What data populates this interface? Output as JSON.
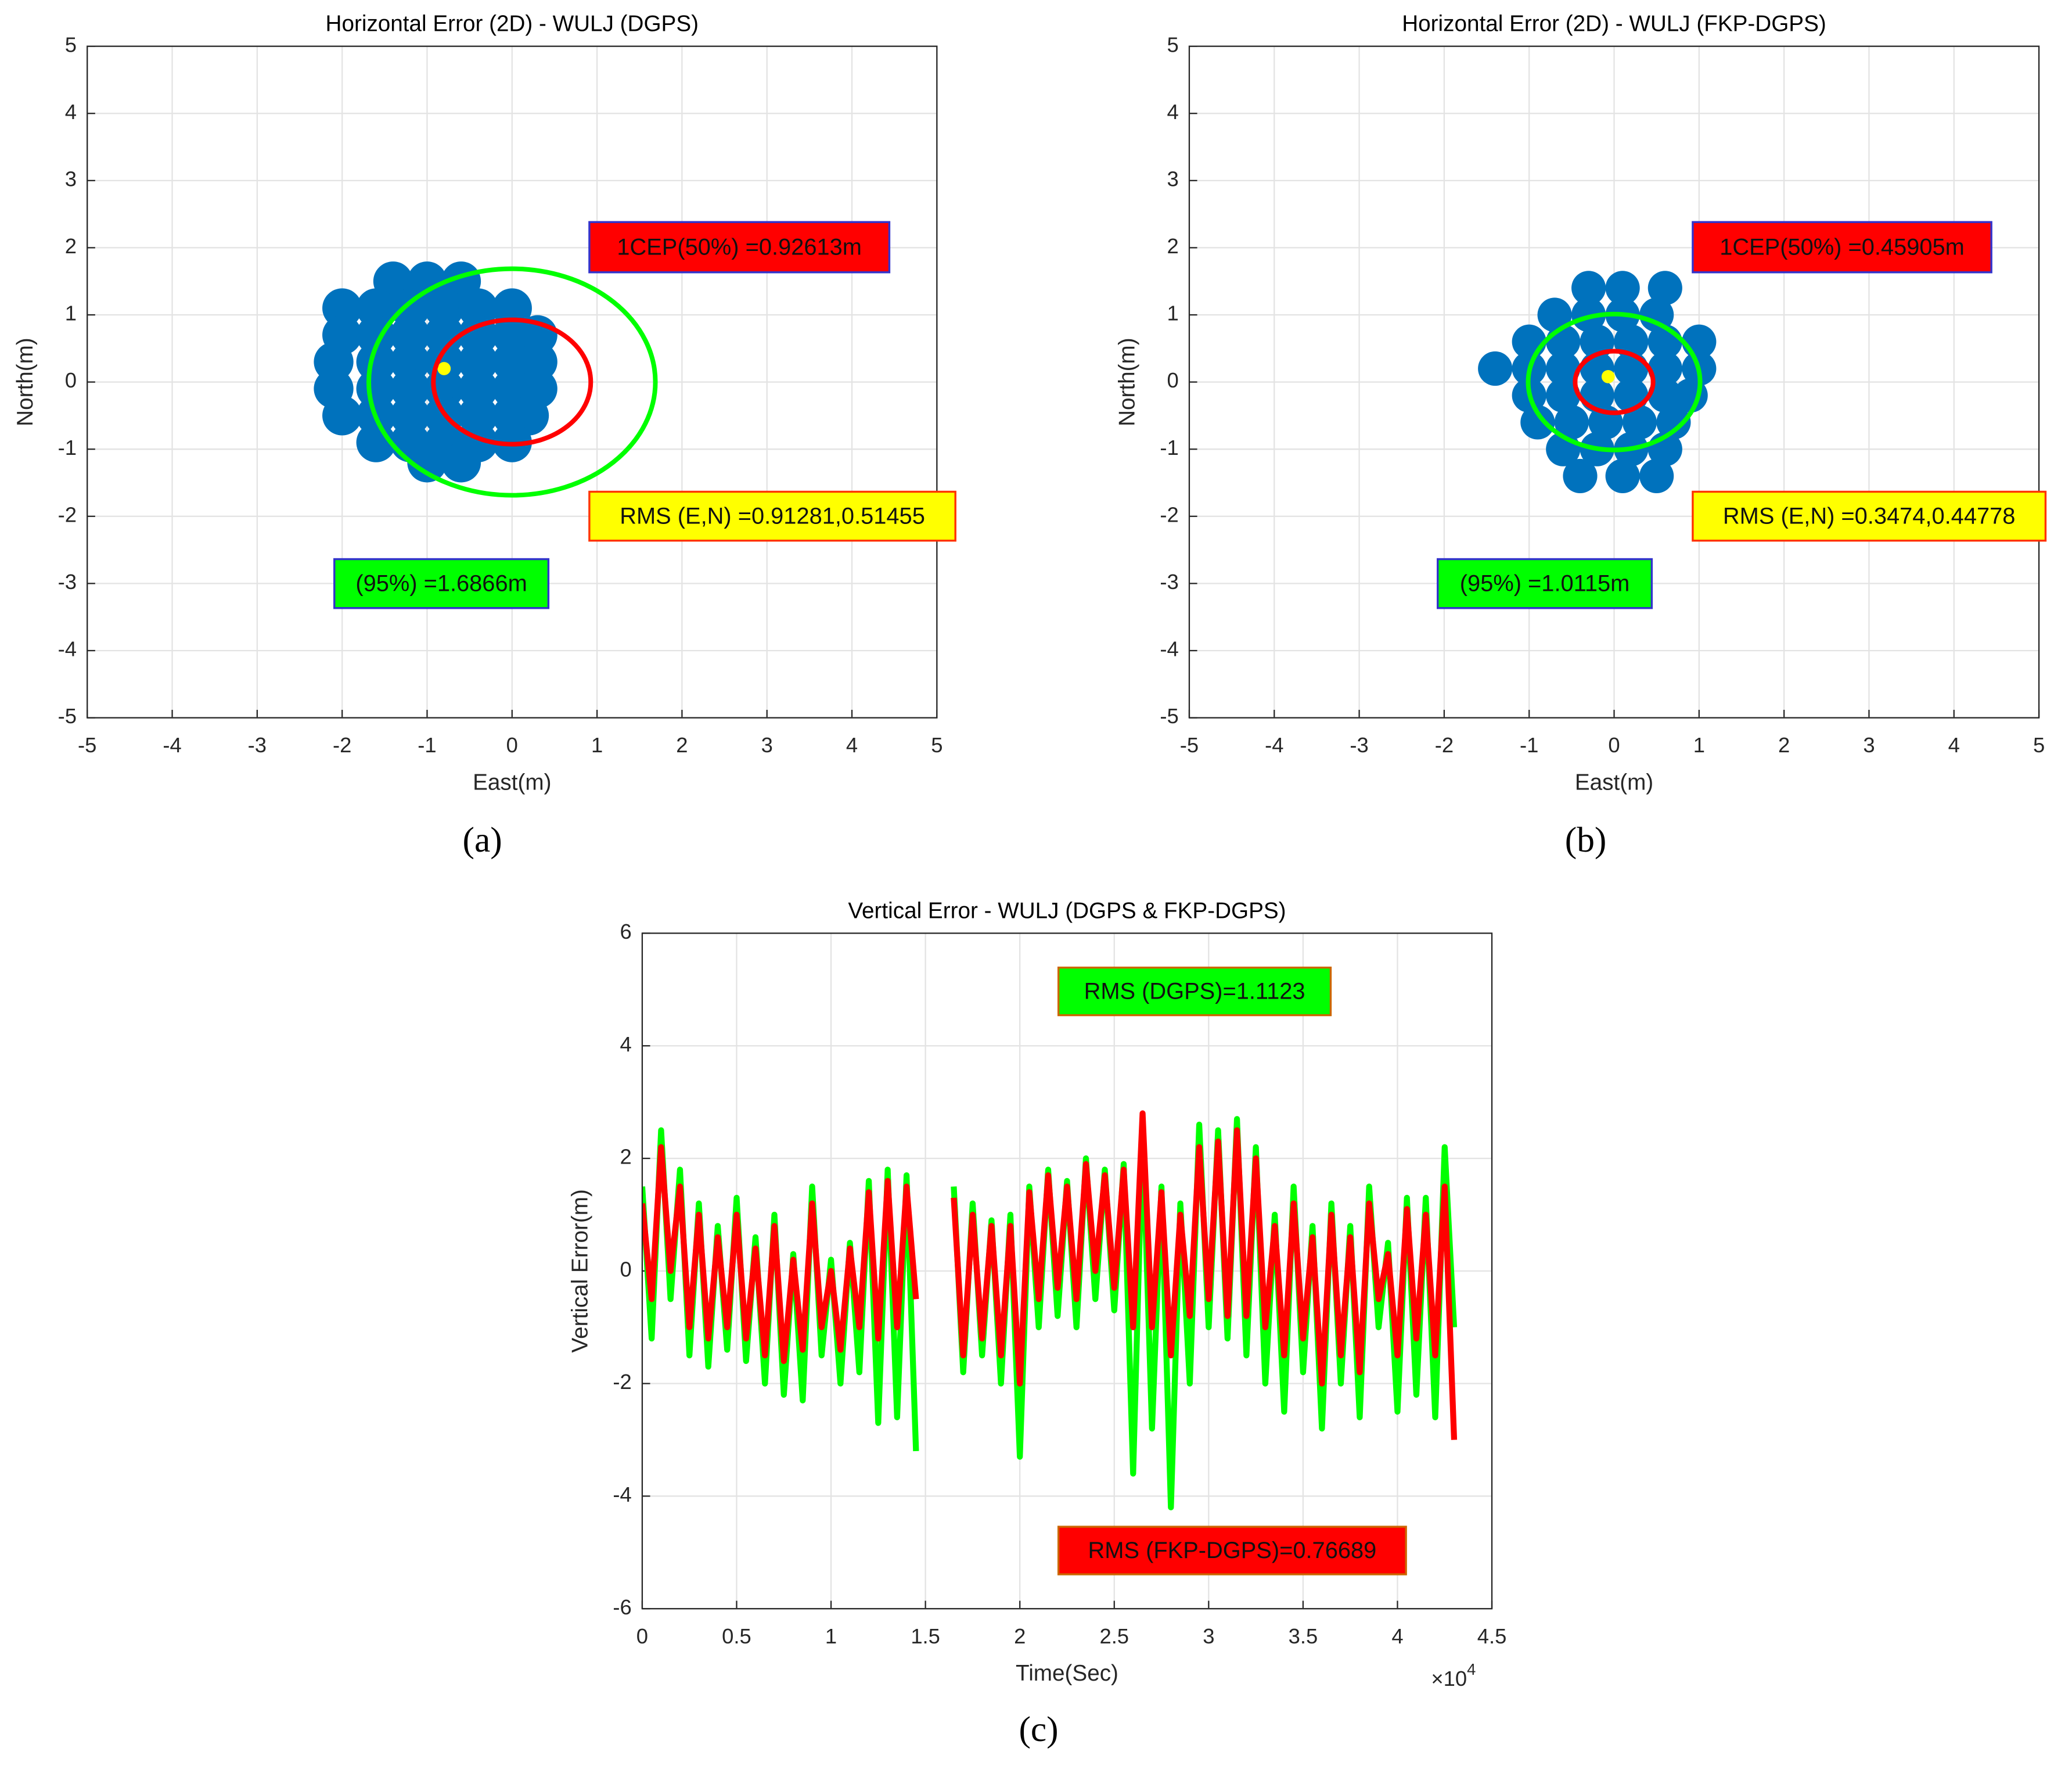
{
  "chart_data": [
    {
      "type": "scatter",
      "title": "Horizontal Error (2D) - WULJ (DGPS)",
      "x_label": "East(m)",
      "y_label": "North(m)",
      "caption": "(a)",
      "xlim": [
        -5,
        5
      ],
      "ylim": [
        -5,
        5
      ],
      "xticks": [
        -5,
        -4,
        -3,
        -2,
        -1,
        0,
        1,
        2,
        3,
        4,
        5
      ],
      "yticks": [
        -5,
        -4,
        -3,
        -2,
        -1,
        0,
        1,
        2,
        3,
        4,
        5
      ],
      "grid": true,
      "series": [
        {
          "color": "#0072bd",
          "x": [
            -1.4,
            -1.0,
            -0.6,
            -2.0,
            -1.6,
            -1.2,
            -0.8,
            -0.4,
            0.0,
            -2.0,
            -1.6,
            -1.2,
            -0.8,
            -0.4,
            0.0,
            0.3,
            -2.1,
            -1.6,
            -1.2,
            -0.8,
            -0.4,
            0.0,
            0.3,
            -2.1,
            -1.6,
            -1.2,
            -0.8,
            -0.4,
            0.0,
            0.3,
            -2.0,
            -1.6,
            -1.2,
            -0.8,
            -0.4,
            0.0,
            0.2,
            -1.6,
            -1.2,
            -0.8,
            -0.4,
            0.0,
            -1.0,
            -0.6
          ],
          "values": [
            1.5,
            1.5,
            1.5,
            1.1,
            1.1,
            1.1,
            1.1,
            1.1,
            1.1,
            0.7,
            0.7,
            0.7,
            0.7,
            0.7,
            0.7,
            0.7,
            0.3,
            0.3,
            0.3,
            0.3,
            0.3,
            0.3,
            0.3,
            -0.1,
            -0.1,
            -0.1,
            -0.1,
            -0.1,
            -0.1,
            -0.1,
            -0.5,
            -0.5,
            -0.5,
            -0.5,
            -0.5,
            -0.5,
            -0.5,
            -0.9,
            -0.9,
            -0.9,
            -0.9,
            -0.9,
            -1.2,
            -1.2
          ]
        },
        {
          "color": "#ffff00",
          "x": [
            -0.8
          ],
          "values": [
            0.2
          ]
        }
      ],
      "center": [
        0,
        0
      ],
      "circles": [
        {
          "radius": 0.92613,
          "color": "#ff0000"
        },
        {
          "radius": 1.6866,
          "color": "#00ff00"
        }
      ],
      "annotations": [
        {
          "text": "1CEP(50%) =0.92613m",
          "fill": "#ff0000",
          "border": "#3333cc"
        },
        {
          "text": "RMS (E,N) =0.91281,0.51455",
          "fill": "#ffff00",
          "border": "#ff3300"
        },
        {
          "text": "(95%) =1.6866m",
          "fill": "#00ff00",
          "border": "#3333cc"
        }
      ]
    },
    {
      "type": "scatter",
      "title": "Horizontal Error (2D) - WULJ (FKP-DGPS)",
      "x_label": "East(m)",
      "y_label": "North(m)",
      "caption": "(b)",
      "xlim": [
        -5,
        5
      ],
      "ylim": [
        -5,
        5
      ],
      "xticks": [
        -5,
        -4,
        -3,
        -2,
        -1,
        0,
        1,
        2,
        3,
        4,
        5
      ],
      "yticks": [
        -5,
        -4,
        -3,
        -2,
        -1,
        0,
        1,
        2,
        3,
        4,
        5
      ],
      "grid": true,
      "series": [
        {
          "color": "#0072bd",
          "x": [
            -0.3,
            0.1,
            0.6,
            -0.7,
            -0.3,
            0.1,
            0.5,
            -1.0,
            -0.6,
            -0.2,
            0.2,
            0.6,
            1.0,
            -1.4,
            -1.0,
            -0.6,
            -0.2,
            0.2,
            0.6,
            1.0,
            -1.0,
            -0.6,
            -0.2,
            0.2,
            0.6,
            0.9,
            -0.9,
            -0.5,
            -0.1,
            0.3,
            0.7,
            -0.6,
            -0.2,
            0.2,
            0.6,
            -0.4,
            0.1,
            0.5
          ],
          "values": [
            1.4,
            1.4,
            1.4,
            1.0,
            1.0,
            1.0,
            1.0,
            0.6,
            0.6,
            0.6,
            0.6,
            0.6,
            0.6,
            0.2,
            0.2,
            0.2,
            0.2,
            0.2,
            0.2,
            0.2,
            -0.2,
            -0.2,
            -0.2,
            -0.2,
            -0.2,
            -0.2,
            -0.6,
            -0.6,
            -0.6,
            -0.6,
            -0.6,
            -1.0,
            -1.0,
            -1.0,
            -1.0,
            -1.4,
            -1.4,
            -1.4
          ]
        },
        {
          "color": "#ffff00",
          "x": [
            -0.07
          ],
          "values": [
            0.08
          ]
        }
      ],
      "center": [
        0,
        0
      ],
      "circles": [
        {
          "radius": 0.45905,
          "color": "#ff0000"
        },
        {
          "radius": 1.0115,
          "color": "#00ff00"
        }
      ],
      "annotations": [
        {
          "text": "1CEP(50%) =0.45905m",
          "fill": "#ff0000",
          "border": "#3333cc"
        },
        {
          "text": "RMS (E,N) =0.3474,0.44778",
          "fill": "#ffff00",
          "border": "#ff3300"
        },
        {
          "text": "(95%) =1.0115m",
          "fill": "#00ff00",
          "border": "#3333cc"
        }
      ]
    },
    {
      "type": "line",
      "title": "Vertical Error - WULJ (DGPS & FKP-DGPS)",
      "x_label": "Time(Sec)",
      "y_label": "Vertical Error(m)",
      "caption": "(c)",
      "x_multiplier": {
        "base": "×10",
        "power": "4"
      },
      "xlim": [
        0,
        45000
      ],
      "ylim": [
        -6,
        6
      ],
      "xticks": [
        0,
        {
          "value": 5000,
          "label": "0.5"
        },
        {
          "value": 10000,
          "label": "1"
        },
        {
          "value": 15000,
          "label": "1.5"
        },
        {
          "value": 20000,
          "label": "2"
        },
        {
          "value": 25000,
          "label": "2.5"
        },
        {
          "value": 30000,
          "label": "3"
        },
        {
          "value": 35000,
          "label": "3.5"
        },
        {
          "value": 40000,
          "label": "4"
        },
        {
          "value": 45000,
          "label": "4.5"
        }
      ],
      "yticks": [
        -6,
        -4,
        -2,
        0,
        2,
        4,
        6
      ],
      "grid": true,
      "x": [
        0,
        500,
        1000,
        1500,
        2000,
        2500,
        3000,
        3500,
        4000,
        4500,
        5000,
        5500,
        6000,
        6500,
        7000,
        7500,
        8000,
        8500,
        9000,
        9500,
        10000,
        10500,
        11000,
        11500,
        12000,
        12500,
        13000,
        13500,
        14000,
        14500,
        15500,
        16500,
        17000,
        17500,
        18000,
        18500,
        19000,
        19500,
        20000,
        20500,
        21000,
        21500,
        22000,
        22500,
        23000,
        23500,
        24000,
        24500,
        25000,
        25500,
        26000,
        26500,
        27000,
        27500,
        28000,
        28500,
        29000,
        29500,
        30000,
        30500,
        31000,
        31500,
        32000,
        32500,
        33000,
        33500,
        34000,
        34500,
        35000,
        35500,
        36000,
        36500,
        37000,
        37500,
        38000,
        38500,
        39000,
        39500,
        40000,
        40500,
        41000,
        41500,
        42000,
        42500,
        43000
      ],
      "series": [
        {
          "color": "#00ff00",
          "values": [
            1.5,
            -1.2,
            2.5,
            -0.5,
            1.8,
            -1.5,
            1.2,
            -1.7,
            0.8,
            -1.4,
            1.3,
            -1.6,
            0.6,
            -2.0,
            1.0,
            -2.2,
            0.3,
            -2.3,
            1.5,
            -1.5,
            0.2,
            -2.0,
            0.5,
            -1.8,
            1.6,
            -2.7,
            1.8,
            -2.6,
            1.7,
            -3.2,
            null,
            1.5,
            -1.8,
            1.2,
            -1.5,
            0.9,
            -2.0,
            1.0,
            -3.3,
            1.5,
            -1.0,
            1.8,
            -0.8,
            1.6,
            -1.0,
            2.0,
            -0.5,
            1.8,
            -0.7,
            1.9,
            -3.6,
            2.5,
            -2.8,
            1.5,
            -4.2,
            1.2,
            -2.0,
            2.6,
            -1.0,
            2.5,
            -1.2,
            2.7,
            -1.5,
            2.2,
            -2.0,
            1.0,
            -2.5,
            1.5,
            -1.8,
            0.8,
            -2.8,
            1.2,
            -2.0,
            0.8,
            -2.6,
            1.5,
            -1.0,
            0.5,
            -2.5,
            1.3,
            -2.2,
            1.3,
            -2.6,
            2.2,
            -1.0
          ]
        },
        {
          "color": "#ff0000",
          "values": [
            1.2,
            -0.5,
            2.2,
            0.0,
            1.5,
            -1.0,
            1.0,
            -1.2,
            0.6,
            -1.0,
            1.0,
            -1.2,
            0.4,
            -1.5,
            0.8,
            -1.6,
            0.2,
            -1.4,
            1.2,
            -1.0,
            0.0,
            -1.4,
            0.4,
            -1.0,
            1.4,
            -1.2,
            1.6,
            -1.0,
            1.5,
            -0.5,
            null,
            1.3,
            -1.5,
            1.0,
            -1.2,
            0.8,
            -1.5,
            0.8,
            -2.0,
            1.4,
            -0.5,
            1.7,
            -0.3,
            1.5,
            -0.5,
            1.9,
            0.0,
            1.7,
            -0.3,
            1.8,
            -1.0,
            2.8,
            -1.0,
            1.4,
            -1.5,
            1.0,
            -0.8,
            2.2,
            -0.5,
            2.3,
            -0.8,
            2.5,
            -0.8,
            2.0,
            -1.0,
            0.8,
            -1.5,
            1.2,
            -1.2,
            0.6,
            -2.0,
            1.0,
            -1.5,
            0.6,
            -1.8,
            1.2,
            -0.5,
            0.3,
            -1.5,
            1.1,
            -1.2,
            1.0,
            -1.5,
            1.5,
            -3.0
          ]
        }
      ],
      "annotations": [
        {
          "text": "RMS (DGPS)=1.1123",
          "fill": "#00ff00",
          "border": "#cc6600"
        },
        {
          "text": "RMS (FKP-DGPS)=0.76689",
          "fill": "#ff0000",
          "border": "#cc6600"
        }
      ]
    }
  ]
}
